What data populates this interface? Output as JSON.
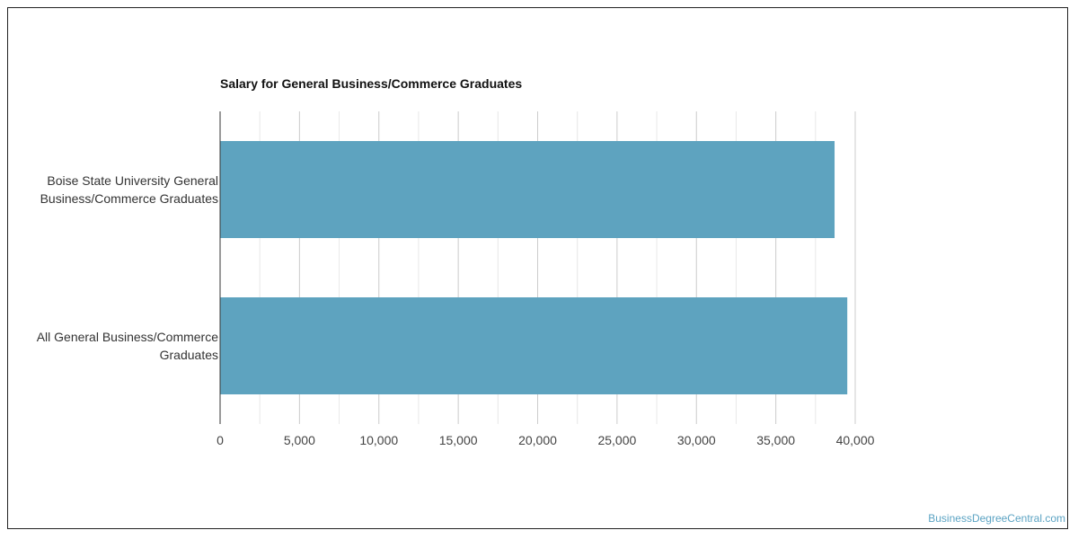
{
  "chart_data": {
    "type": "bar",
    "orientation": "horizontal",
    "title": "Salary for General Business/Commerce Graduates",
    "categories": [
      "Boise State University General Business/Commerce Graduates",
      "All General Business/Commerce Graduates"
    ],
    "values": [
      38700,
      39500
    ],
    "xlim": [
      0,
      40000
    ],
    "xticks": [
      "0",
      "5,000",
      "10,000",
      "15,000",
      "20,000",
      "25,000",
      "30,000",
      "35,000",
      "40,000"
    ],
    "grid": true,
    "bar_color": "#5ea3bf"
  },
  "watermark": "BusinessDegreeCentral.com"
}
